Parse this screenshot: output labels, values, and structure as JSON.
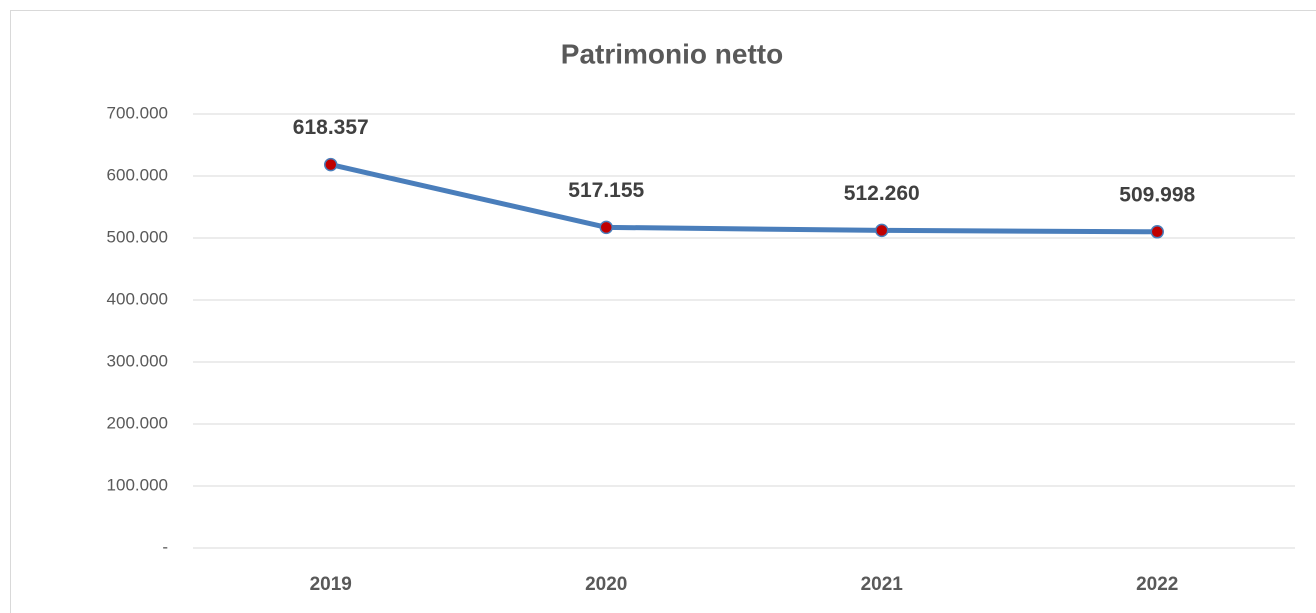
{
  "chart_data": {
    "type": "line",
    "title": "Patrimonio netto",
    "categories": [
      "2019",
      "2020",
      "2021",
      "2022"
    ],
    "series": [
      {
        "name": "Patrimonio netto",
        "color": "#4a7ebb",
        "marker_color": "#c00000",
        "values": [
          618357,
          517155,
          512260,
          509998
        ],
        "value_labels": [
          "618.357",
          "517.155",
          "512.260",
          "509.998"
        ]
      }
    ],
    "ylim": [
      0,
      700000
    ],
    "yticks": [
      {
        "value": 0,
        "label": "-"
      },
      {
        "value": 100000,
        "label": "100.000"
      },
      {
        "value": 200000,
        "label": "200.000"
      },
      {
        "value": 300000,
        "label": "300.000"
      },
      {
        "value": 400000,
        "label": "400.000"
      },
      {
        "value": 500000,
        "label": "500.000"
      },
      {
        "value": 600000,
        "label": "600.000"
      },
      {
        "value": 700000,
        "label": "700.000"
      }
    ],
    "grid": true
  }
}
